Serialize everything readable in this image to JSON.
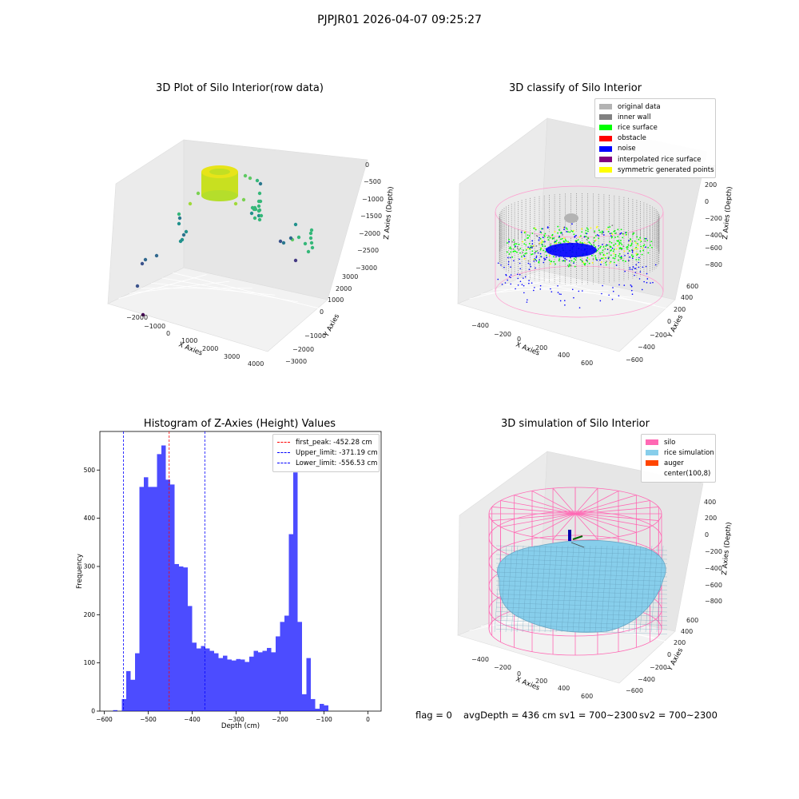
{
  "figure": {
    "suptitle": "PJPJR01 2026-04-07 09:25:27",
    "status": {
      "flag": "flag = 0",
      "avg_depth": "avgDepth = 436 cm",
      "sv1": "sv1 = 700~2300",
      "sv2": "sv2 = 700~2300"
    }
  },
  "chart_data": [
    {
      "type": "scatter",
      "title": "3D Plot of Silo Interior(row data)",
      "xlabel": "X Axies",
      "ylabel": "Y Axies",
      "zlabel": "Z Axies (Depth)",
      "x_ticks": [
        "−2000",
        "−1000",
        "0",
        "1000",
        "2000",
        "3000",
        "4000"
      ],
      "y_ticks": [
        "−3000",
        "−2000",
        "−1000",
        "0",
        "1000",
        "2000",
        "3000"
      ],
      "z_ticks": [
        "0",
        "−500",
        "−1000",
        "−1500",
        "−2000",
        "−2500",
        "−3000"
      ],
      "colormap": "viridis"
    },
    {
      "type": "scatter",
      "title": "3D classify of Silo Interior",
      "xlabel": "X Axies",
      "ylabel": "Y Axies",
      "zlabel": "Z Axies (Depth)",
      "x_ticks": [
        "−400",
        "−200",
        "0",
        "200",
        "400",
        "600"
      ],
      "y_ticks": [
        "−600",
        "−400",
        "−200",
        "0",
        "200",
        "400",
        "600"
      ],
      "z_ticks": [
        "400",
        "200",
        "0",
        "−200",
        "−400",
        "−600",
        "−800"
      ],
      "legend": [
        {
          "label": "original data",
          "color": "#b3b3b3"
        },
        {
          "label": "inner wall",
          "color": "#808080"
        },
        {
          "label": "rice surface",
          "color": "#00ff00"
        },
        {
          "label": "obstacle",
          "color": "#ff0000"
        },
        {
          "label": "noise",
          "color": "#0000ff"
        },
        {
          "label": "interpolated rice surface",
          "color": "#800080"
        },
        {
          "label": "symmetric generated points",
          "color": "#ffff00"
        }
      ],
      "legend_position": "top-right"
    },
    {
      "type": "bar",
      "title": "Histogram of Z-Axies (Height) Values",
      "xlabel": "Depth (cm)",
      "ylabel": "Frequency",
      "xlim": [
        -610,
        30
      ],
      "ylim": [
        0,
        580
      ],
      "x_ticks": [
        -600,
        -500,
        -400,
        -300,
        -200,
        -100,
        0
      ],
      "x_tick_labels": [
        "−600",
        "−500",
        "−400",
        "−300",
        "−200",
        "−100",
        "0"
      ],
      "y_ticks": [
        0,
        100,
        200,
        300,
        400,
        500
      ],
      "bin_start": -560,
      "bin_width": 10,
      "bar_color": "#0000ff",
      "values": [
        25,
        83,
        65,
        120,
        465,
        485,
        465,
        465,
        533,
        551,
        480,
        470,
        305,
        300,
        298,
        218,
        142,
        130,
        135,
        130,
        125,
        120,
        110,
        115,
        107,
        105,
        108,
        107,
        102,
        113,
        125,
        122,
        125,
        131,
        122,
        155,
        185,
        198,
        367,
        495,
        185,
        35,
        110,
        25,
        5,
        15,
        12
      ],
      "extra_bars": [
        {
          "x0": -580,
          "x1": -570,
          "value": 2
        }
      ],
      "vlines": [
        {
          "label": "first_peak: -452.28 cm",
          "x": -452.28,
          "color": "#ff0000"
        },
        {
          "label": "Upper_limit: -371.19 cm",
          "x": -371.19,
          "color": "#0000ff"
        },
        {
          "label": "Lower_limit: -556.53 cm",
          "x": -556.53,
          "color": "#0000ff"
        }
      ],
      "legend_position": "top-right"
    },
    {
      "type": "surface",
      "title": "3D simulation of Silo Interior",
      "xlabel": "X Axies",
      "ylabel": "Y Axies",
      "zlabel": "Z Axies (Depth)",
      "x_ticks": [
        "−400",
        "−200",
        "0",
        "200",
        "400",
        "600"
      ],
      "y_ticks": [
        "−600",
        "−400",
        "−200",
        "0",
        "200",
        "400",
        "600"
      ],
      "z_ticks": [
        "400",
        "200",
        "0",
        "−200",
        "−400",
        "−600",
        "−800"
      ],
      "legend": [
        {
          "label": "silo",
          "color": "#ff69b4"
        },
        {
          "label": "rice simulation",
          "color": "#87ceeb"
        },
        {
          "label": "auger",
          "color": "#ff4500"
        },
        {
          "label": "center(100,8)",
          "color": ""
        }
      ],
      "legend_position": "top-right"
    }
  ]
}
